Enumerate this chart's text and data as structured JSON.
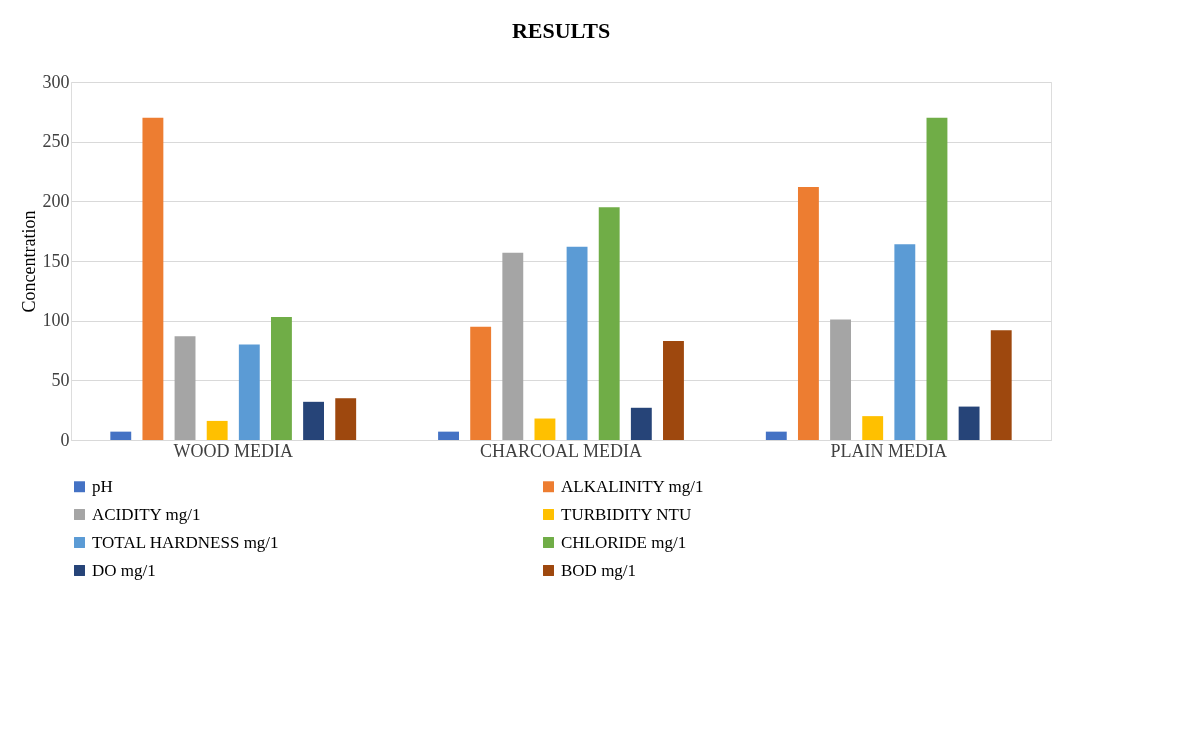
{
  "chart_data": {
    "type": "bar",
    "title": "RESULTS",
    "ylabel": "Concentration",
    "categories": [
      "WOOD MEDIA",
      "CHARCOAL MEDIA",
      "PLAIN MEDIA"
    ],
    "series": [
      {
        "name": "pH",
        "color": "#4472c4",
        "values": [
          7,
          7,
          7
        ]
      },
      {
        "name": "ALKALINITY mg/1",
        "color": "#ed7d31",
        "values": [
          270,
          95,
          212
        ]
      },
      {
        "name": "ACIDITY mg/1",
        "color": "#a5a5a5",
        "values": [
          87,
          157,
          101
        ]
      },
      {
        "name": "TURBIDITY NTU",
        "color": "#ffc000",
        "values": [
          16,
          18,
          20
        ]
      },
      {
        "name": "TOTAL HARDNESS mg/1",
        "color": "#5b9bd5",
        "values": [
          80,
          162,
          164
        ]
      },
      {
        "name": "CHLORIDE mg/1",
        "color": "#70ad47",
        "values": [
          103,
          195,
          270
        ]
      },
      {
        "name": "DO mg/1",
        "color": "#264478",
        "values": [
          32,
          27,
          28
        ]
      },
      {
        "name": "BOD mg/1",
        "color": "#9e480e",
        "values": [
          35,
          83,
          92
        ]
      }
    ],
    "ylim": [
      0,
      300
    ],
    "yticks": [
      0,
      50,
      100,
      150,
      200,
      250,
      300
    ],
    "grid": "y",
    "legend": "bottom"
  }
}
